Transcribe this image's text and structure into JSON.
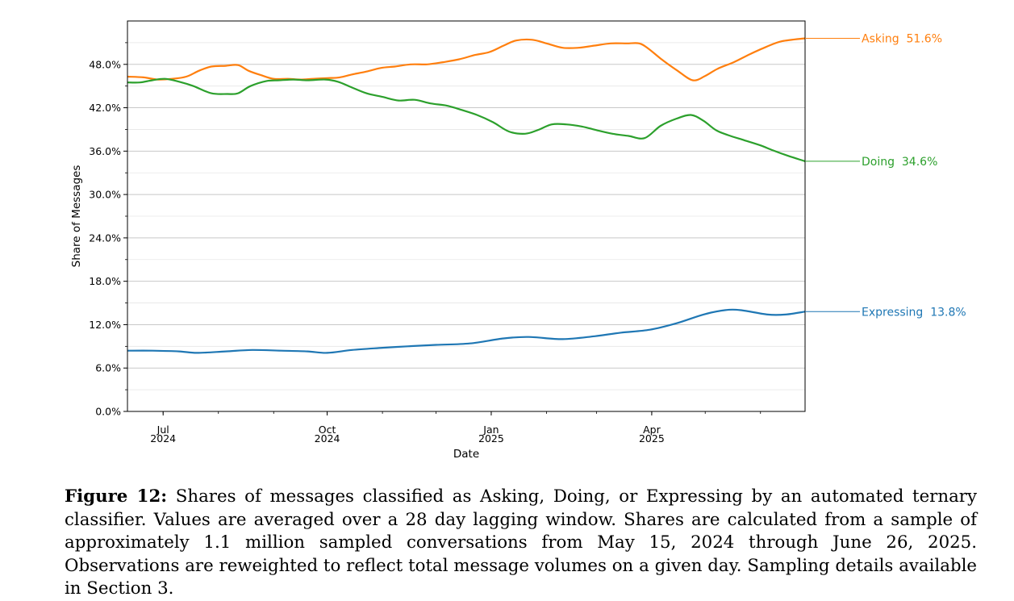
{
  "chart_data": {
    "type": "line",
    "xlabel": "Date",
    "ylabel": "Share of Messages",
    "ylim": [
      0,
      54
    ],
    "xlim": [
      "2024-06-11",
      "2025-06-26"
    ],
    "grid": "horizontal",
    "y_ticks": [
      "0.0%",
      "6.0%",
      "12.0%",
      "18.0%",
      "24.0%",
      "30.0%",
      "36.0%",
      "42.0%",
      "48.0%"
    ],
    "x_ticks": [
      {
        "date": "2024-07-01",
        "month": "Jul",
        "year": "2024"
      },
      {
        "date": "2024-10-01",
        "month": "Oct",
        "year": "2024"
      },
      {
        "date": "2025-01-01",
        "month": "Jan",
        "year": "2025"
      },
      {
        "date": "2025-04-01",
        "month": "Apr",
        "year": "2025"
      }
    ],
    "series": [
      {
        "name": "Asking",
        "color": "#ff7f0e",
        "end_label": "Asking  51.6%",
        "points": [
          [
            "2024-06-11",
            46.3
          ],
          [
            "2024-06-20",
            46.2
          ],
          [
            "2024-06-28",
            45.9
          ],
          [
            "2024-07-06",
            46.0
          ],
          [
            "2024-07-14",
            46.3
          ],
          [
            "2024-07-21",
            47.1
          ],
          [
            "2024-07-28",
            47.7
          ],
          [
            "2024-08-05",
            47.8
          ],
          [
            "2024-08-12",
            47.9
          ],
          [
            "2024-08-18",
            47.1
          ],
          [
            "2024-08-25",
            46.5
          ],
          [
            "2024-09-01",
            46.0
          ],
          [
            "2024-09-09",
            46.0
          ],
          [
            "2024-09-16",
            45.9
          ],
          [
            "2024-09-23",
            46.0
          ],
          [
            "2024-10-01",
            46.1
          ],
          [
            "2024-10-08",
            46.2
          ],
          [
            "2024-10-15",
            46.6
          ],
          [
            "2024-10-23",
            47.0
          ],
          [
            "2024-10-31",
            47.5
          ],
          [
            "2024-11-08",
            47.7
          ],
          [
            "2024-11-17",
            48.0
          ],
          [
            "2024-11-26",
            48.0
          ],
          [
            "2024-12-05",
            48.3
          ],
          [
            "2024-12-14",
            48.7
          ],
          [
            "2024-12-23",
            49.3
          ],
          [
            "2024-12-31",
            49.7
          ],
          [
            "2025-01-08",
            50.6
          ],
          [
            "2025-01-15",
            51.3
          ],
          [
            "2025-01-24",
            51.4
          ],
          [
            "2025-02-01",
            50.9
          ],
          [
            "2025-02-10",
            50.3
          ],
          [
            "2025-02-19",
            50.3
          ],
          [
            "2025-02-28",
            50.6
          ],
          [
            "2025-03-09",
            50.9
          ],
          [
            "2025-03-18",
            50.9
          ],
          [
            "2025-03-25",
            50.9
          ],
          [
            "2025-03-30",
            50.2
          ],
          [
            "2025-04-06",
            48.8
          ],
          [
            "2025-04-15",
            47.2
          ],
          [
            "2025-04-24",
            45.8
          ],
          [
            "2025-05-01",
            46.4
          ],
          [
            "2025-05-08",
            47.4
          ],
          [
            "2025-05-17",
            48.3
          ],
          [
            "2025-05-26",
            49.4
          ],
          [
            "2025-06-04",
            50.4
          ],
          [
            "2025-06-13",
            51.2
          ],
          [
            "2025-06-26",
            51.6
          ]
        ]
      },
      {
        "name": "Doing",
        "color": "#2ca02c",
        "end_label": "Doing  34.6%",
        "points": [
          [
            "2024-06-11",
            45.5
          ],
          [
            "2024-06-18",
            45.5
          ],
          [
            "2024-06-25",
            45.8
          ],
          [
            "2024-07-02",
            46.0
          ],
          [
            "2024-07-10",
            45.6
          ],
          [
            "2024-07-18",
            45.0
          ],
          [
            "2024-07-28",
            44.0
          ],
          [
            "2024-08-06",
            43.9
          ],
          [
            "2024-08-12",
            44.0
          ],
          [
            "2024-08-19",
            45.0
          ],
          [
            "2024-08-28",
            45.7
          ],
          [
            "2024-09-04",
            45.8
          ],
          [
            "2024-09-12",
            45.9
          ],
          [
            "2024-09-20",
            45.8
          ],
          [
            "2024-09-30",
            45.9
          ],
          [
            "2024-10-07",
            45.6
          ],
          [
            "2024-10-14",
            44.9
          ],
          [
            "2024-10-23",
            44.0
          ],
          [
            "2024-11-01",
            43.5
          ],
          [
            "2024-11-10",
            43.0
          ],
          [
            "2024-11-19",
            43.1
          ],
          [
            "2024-11-28",
            42.6
          ],
          [
            "2024-12-07",
            42.3
          ],
          [
            "2024-12-14",
            41.8
          ],
          [
            "2024-12-24",
            41.0
          ],
          [
            "2025-01-02",
            40.0
          ],
          [
            "2025-01-11",
            38.7
          ],
          [
            "2025-01-20",
            38.4
          ],
          [
            "2025-01-27",
            38.9
          ],
          [
            "2025-02-04",
            39.7
          ],
          [
            "2025-02-12",
            39.7
          ],
          [
            "2025-02-21",
            39.4
          ],
          [
            "2025-03-01",
            38.9
          ],
          [
            "2025-03-10",
            38.4
          ],
          [
            "2025-03-19",
            38.1
          ],
          [
            "2025-03-28",
            37.8
          ],
          [
            "2025-04-06",
            39.5
          ],
          [
            "2025-04-15",
            40.5
          ],
          [
            "2025-04-23",
            41.0
          ],
          [
            "2025-04-30",
            40.2
          ],
          [
            "2025-05-07",
            38.9
          ],
          [
            "2025-05-14",
            38.2
          ],
          [
            "2025-05-23",
            37.5
          ],
          [
            "2025-06-01",
            36.8
          ],
          [
            "2025-06-08",
            36.1
          ],
          [
            "2025-06-17",
            35.3
          ],
          [
            "2025-06-26",
            34.6
          ]
        ]
      },
      {
        "name": "Expressing",
        "color": "#1f77b4",
        "end_label": "Expressing  13.8%",
        "points": [
          [
            "2024-06-11",
            8.4
          ],
          [
            "2024-06-25",
            8.4
          ],
          [
            "2024-07-10",
            8.3
          ],
          [
            "2024-07-20",
            8.1
          ],
          [
            "2024-08-05",
            8.3
          ],
          [
            "2024-08-20",
            8.5
          ],
          [
            "2024-09-05",
            8.4
          ],
          [
            "2024-09-20",
            8.3
          ],
          [
            "2024-10-01",
            8.1
          ],
          [
            "2024-10-15",
            8.5
          ],
          [
            "2024-11-01",
            8.8
          ],
          [
            "2024-11-15",
            9.0
          ],
          [
            "2024-12-01",
            9.2
          ],
          [
            "2024-12-20",
            9.4
          ],
          [
            "2025-01-08",
            10.1
          ],
          [
            "2025-01-22",
            10.3
          ],
          [
            "2025-02-10",
            10.0
          ],
          [
            "2025-02-28",
            10.4
          ],
          [
            "2025-03-15",
            10.9
          ],
          [
            "2025-03-31",
            11.3
          ],
          [
            "2025-04-15",
            12.2
          ],
          [
            "2025-04-30",
            13.4
          ],
          [
            "2025-05-12",
            14.0
          ],
          [
            "2025-05-21",
            14.0
          ],
          [
            "2025-06-05",
            13.4
          ],
          [
            "2025-06-15",
            13.4
          ],
          [
            "2025-06-26",
            13.8
          ]
        ]
      }
    ]
  },
  "caption": {
    "label": "Figure 12:",
    "text": "Shares of messages classified as Asking, Doing, or Expressing by an automated ternary classifier. Values are averaged over a 28 day lagging window. Shares are calculated from a sample of approximately 1.1 million sampled conversations from May 15, 2024 through June 26, 2025. Observations are reweighted to reflect total message volumes on a given day. Sampling details available in Section 3."
  }
}
